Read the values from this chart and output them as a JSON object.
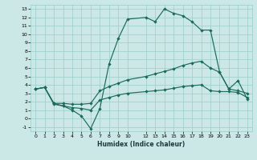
{
  "xlabel": "Humidex (Indice chaleur)",
  "bg_color": "#cce8e6",
  "grid_color": "#99ccca",
  "line_color": "#1a6b5a",
  "xlim": [
    -0.5,
    23.5
  ],
  "ylim": [
    -1.5,
    13.5
  ],
  "xticks": [
    0,
    1,
    2,
    3,
    4,
    5,
    6,
    7,
    8,
    9,
    10,
    12,
    13,
    14,
    15,
    16,
    17,
    18,
    19,
    20,
    21,
    22,
    23
  ],
  "yticks": [
    -1,
    0,
    1,
    2,
    3,
    4,
    5,
    6,
    7,
    8,
    9,
    10,
    11,
    12,
    13
  ],
  "line1_x": [
    0,
    1,
    2,
    3,
    4,
    5,
    6,
    7,
    8,
    9,
    10,
    12,
    13,
    14,
    15,
    16,
    17,
    18,
    19,
    20,
    21,
    22,
    23
  ],
  "line1_y": [
    3.5,
    3.7,
    1.8,
    1.5,
    1.0,
    0.3,
    -1.2,
    1.2,
    6.5,
    9.5,
    11.8,
    12.0,
    11.5,
    13.0,
    12.5,
    12.2,
    11.5,
    10.5,
    10.5,
    5.5,
    3.5,
    4.5,
    2.3
  ],
  "line2_x": [
    0,
    1,
    2,
    3,
    4,
    5,
    6,
    7,
    8,
    9,
    10,
    12,
    13,
    14,
    15,
    16,
    17,
    18,
    19,
    20,
    21,
    22,
    23
  ],
  "line2_y": [
    3.5,
    3.7,
    1.8,
    1.8,
    1.7,
    1.7,
    1.8,
    3.3,
    3.8,
    4.2,
    4.6,
    5.0,
    5.3,
    5.6,
    5.9,
    6.3,
    6.6,
    6.8,
    6.0,
    5.5,
    3.5,
    3.3,
    3.0
  ],
  "line3_x": [
    0,
    1,
    2,
    3,
    4,
    5,
    6,
    7,
    8,
    9,
    10,
    12,
    13,
    14,
    15,
    16,
    17,
    18,
    19,
    20,
    21,
    22,
    23
  ],
  "line3_y": [
    3.5,
    3.7,
    1.7,
    1.5,
    1.3,
    1.2,
    1.0,
    2.2,
    2.5,
    2.8,
    3.0,
    3.2,
    3.3,
    3.4,
    3.6,
    3.8,
    3.9,
    4.0,
    3.3,
    3.2,
    3.2,
    3.1,
    2.5
  ]
}
